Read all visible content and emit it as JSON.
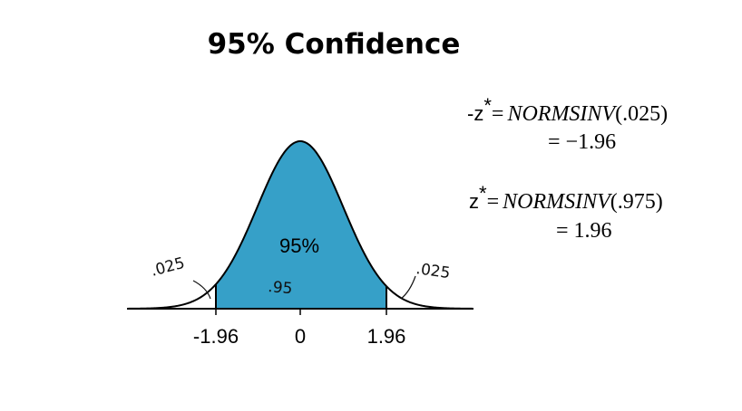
{
  "title": "95% Confidence",
  "curve": {
    "center_label": "95%",
    "ticks": [
      "-1.96",
      "0",
      "1.96"
    ]
  },
  "annotations": {
    "left": ".025",
    "middle": ".95",
    "right": ".025"
  },
  "formulas": [
    {
      "lhs": "-z",
      "sup": "*",
      "eq": "=",
      "func": "NORMSINV",
      "arg": "(.025)",
      "result": "= −1.96"
    },
    {
      "lhs": "z",
      "sup": "*",
      "eq": "=",
      "func": "NORMSINV",
      "arg": "(.975)",
      "result": "= 1.96"
    }
  ]
}
